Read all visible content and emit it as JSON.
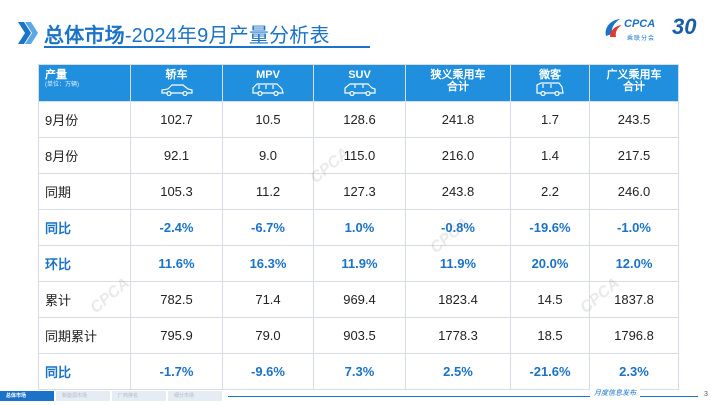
{
  "header": {
    "title_bold": "总体市场",
    "title_rest": "-2024年9月产量分析表",
    "logo_text": "CPCA",
    "logo_sub": "乘联分会",
    "anniversary": "30"
  },
  "table": {
    "columns": [
      {
        "label": "产量",
        "unit": "(单位：万辆)"
      },
      {
        "label": "轿车",
        "icon": "sedan-icon"
      },
      {
        "label": "MPV",
        "icon": "mpv-icon"
      },
      {
        "label": "SUV",
        "icon": "suv-icon"
      },
      {
        "label": "狭义乘用车",
        "label2": "合计"
      },
      {
        "label": "微客",
        "icon": "minivan-icon"
      },
      {
        "label": "广义乘用车",
        "label2": "合计"
      }
    ],
    "rows": [
      {
        "label": "9月份",
        "values": [
          "102.7",
          "10.5",
          "128.6",
          "241.8",
          "1.7",
          "243.5"
        ],
        "style": "normal"
      },
      {
        "label": "8月份",
        "values": [
          "92.1",
          "9.0",
          "115.0",
          "216.0",
          "1.4",
          "217.5"
        ],
        "style": "normal"
      },
      {
        "label": "同期",
        "values": [
          "105.3",
          "11.2",
          "127.3",
          "243.8",
          "2.2",
          "246.0"
        ],
        "style": "normal"
      },
      {
        "label": "同比",
        "values": [
          "-2.4%",
          "-6.7%",
          "1.0%",
          "-0.8%",
          "-19.6%",
          "-1.0%"
        ],
        "style": "blue"
      },
      {
        "label": "环比",
        "values": [
          "11.6%",
          "16.3%",
          "11.9%",
          "11.9%",
          "20.0%",
          "12.0%"
        ],
        "style": "blue"
      },
      {
        "label": "累计",
        "values": [
          "782.5",
          "71.4",
          "969.4",
          "1823.4",
          "14.5",
          "1837.8"
        ],
        "style": "normal"
      },
      {
        "label": "同期累计",
        "values": [
          "795.9",
          "79.0",
          "903.5",
          "1778.3",
          "18.5",
          "1796.8"
        ],
        "style": "normal"
      },
      {
        "label": "同比",
        "values": [
          "-1.7%",
          "-9.6%",
          "7.3%",
          "2.5%",
          "-21.6%",
          "2.3%"
        ],
        "style": "blue"
      }
    ]
  },
  "watermark_text": "CPCA",
  "footer": {
    "tabs": [
      "总体市场",
      "新能源市场",
      "厂商排名",
      "细分市场"
    ],
    "active_tab": 0,
    "brand": "月度信息发布",
    "page_number": "3"
  },
  "colors": {
    "accent": "#1a73c8",
    "header_bg": "#1f8fde",
    "highlight_text": "#1a73c8"
  }
}
